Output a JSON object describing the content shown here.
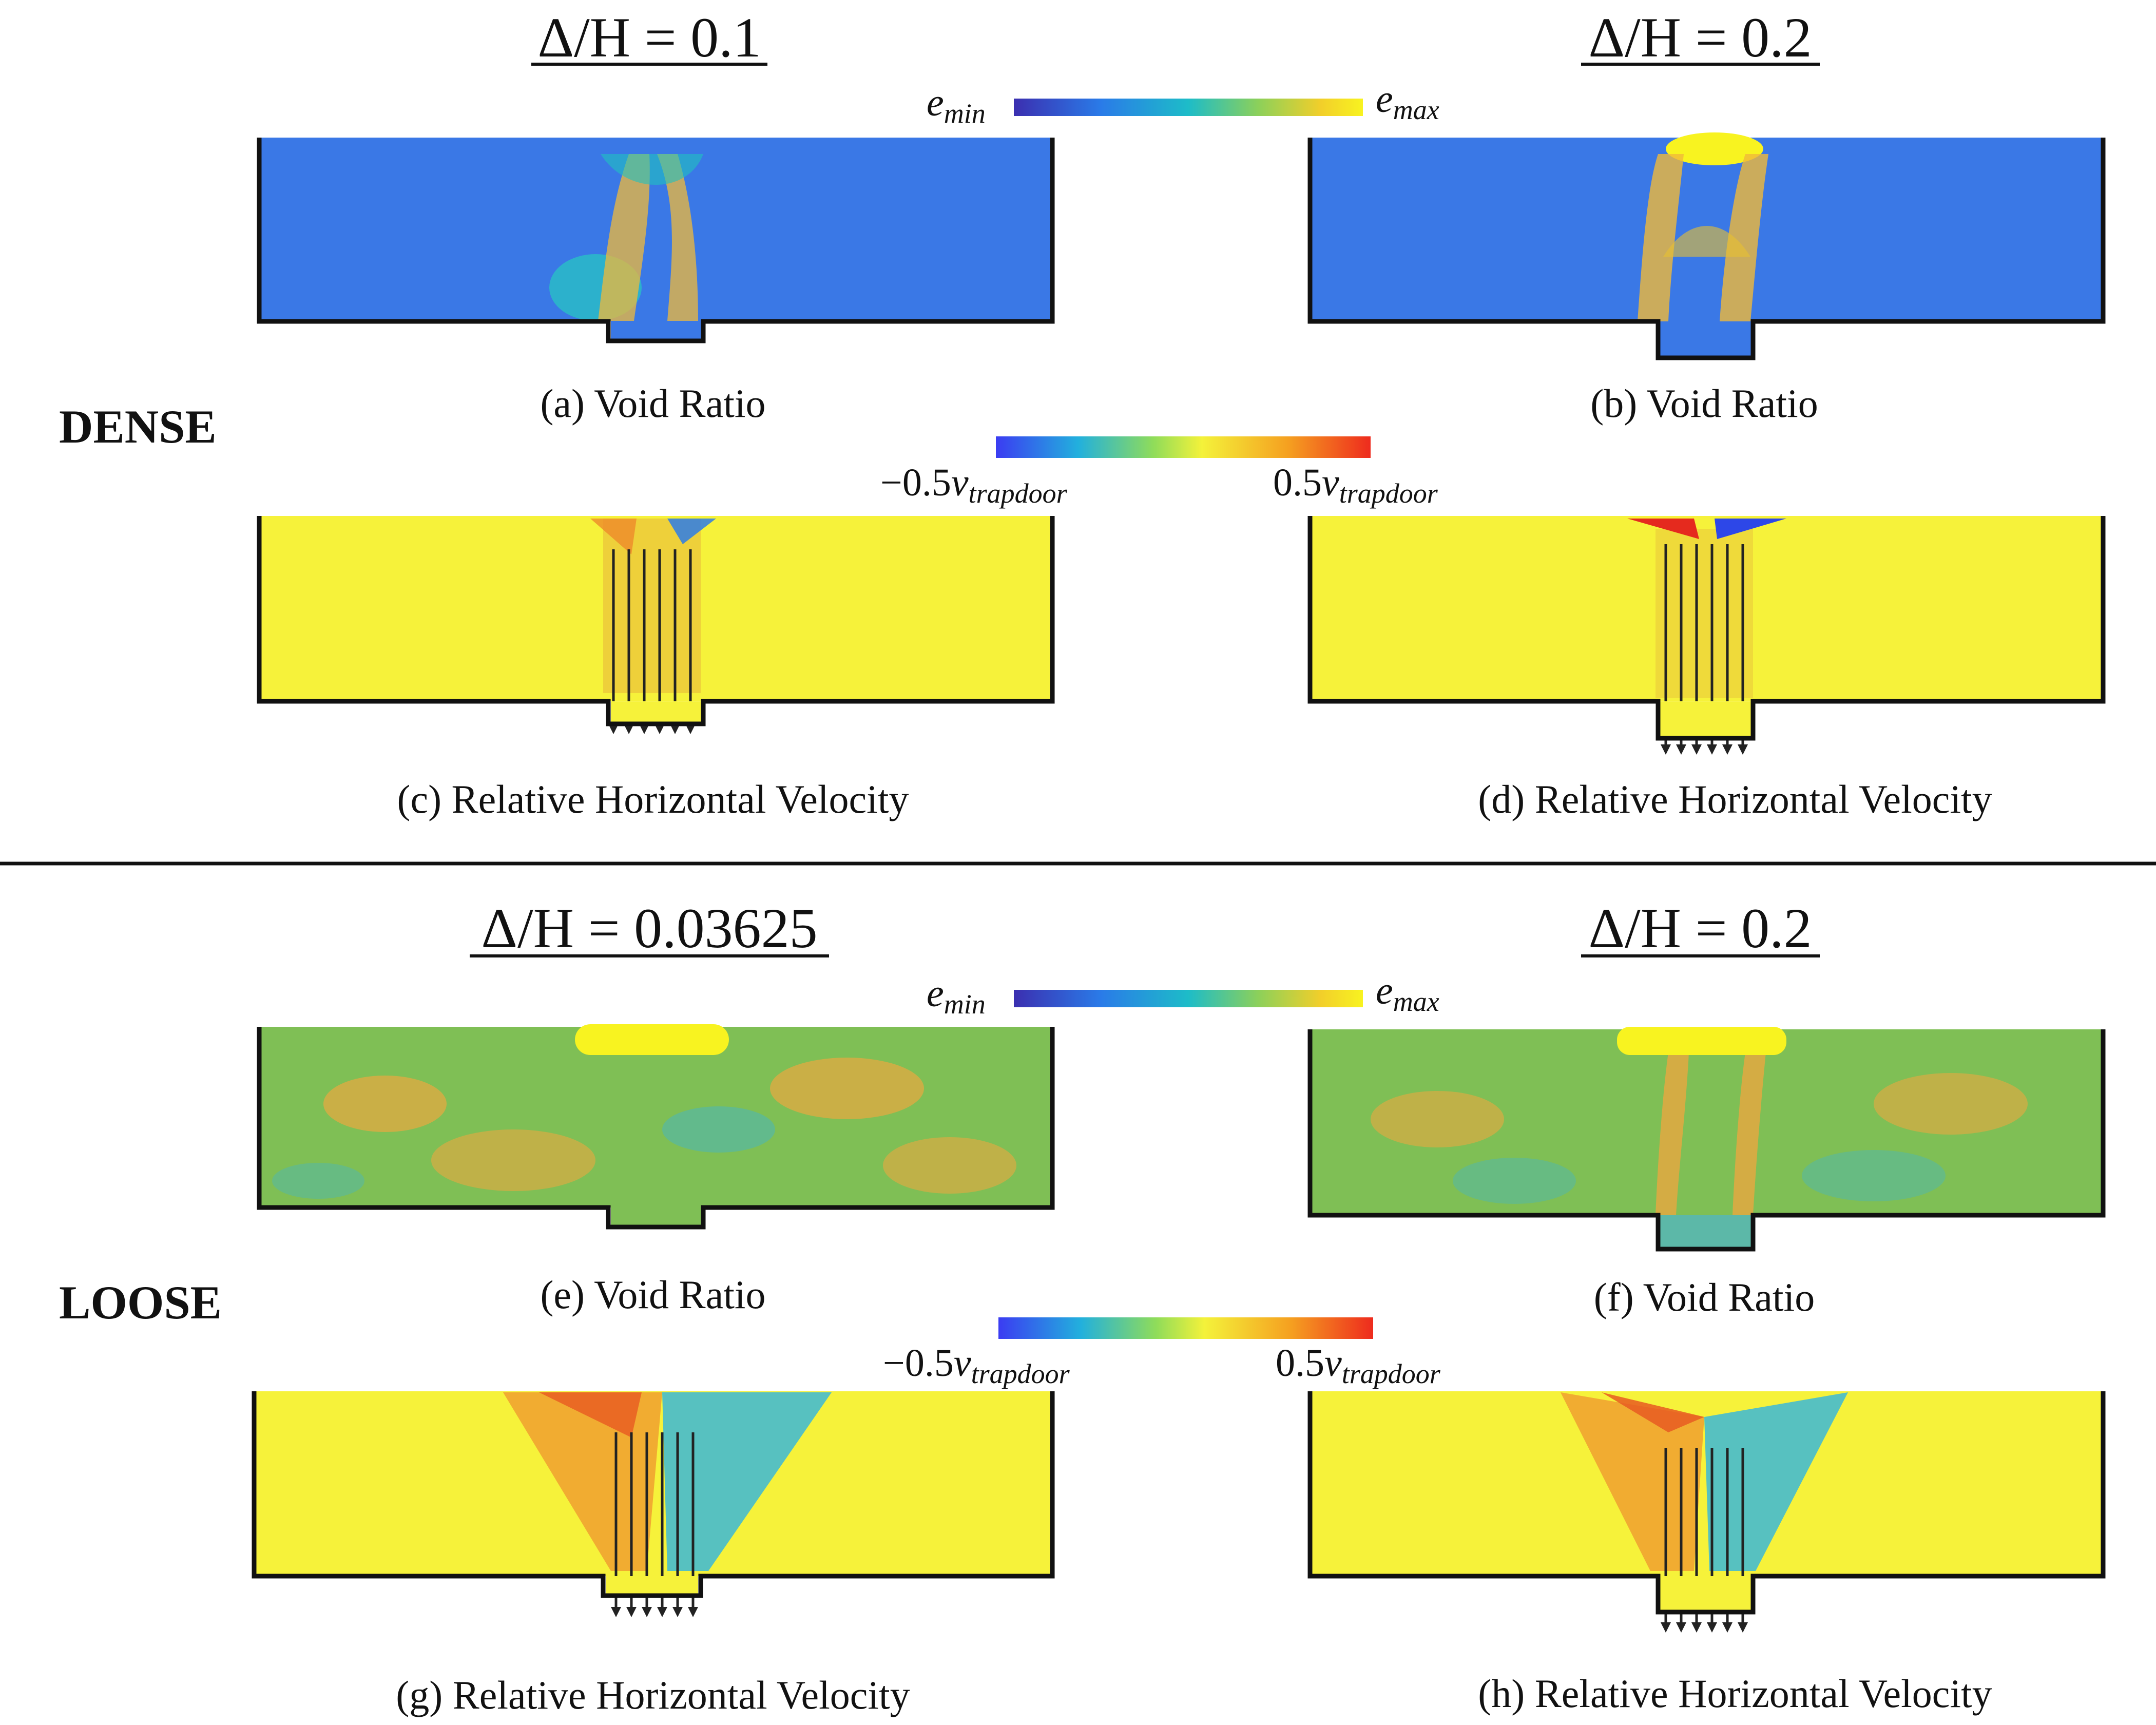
{
  "dense": {
    "group_label": "DENSE",
    "left_title": "Δ/H = 0.1",
    "right_title": "Δ/H = 0.2",
    "void_colorbar": {
      "min_base": "e",
      "min_sub": "min",
      "max_base": "e",
      "max_sub": "max"
    },
    "velocity_colorbar": {
      "min_num": "−0.5",
      "min_base": "v",
      "min_sub": "trapdoor",
      "max_num": "0.5",
      "max_base": "v",
      "max_sub": "trapdoor"
    },
    "captions": {
      "a": "(a) Void Ratio",
      "b": "(b) Void Ratio",
      "c": "(c) Relative Horizontal Velocity",
      "d": "(d) Relative Horizontal Velocity"
    }
  },
  "loose": {
    "group_label": "LOOSE",
    "left_title": "Δ/H = 0.03625",
    "right_title": "Δ/H = 0.2",
    "void_colorbar": {
      "min_base": "e",
      "min_sub": "min",
      "max_base": "e",
      "max_sub": "max"
    },
    "velocity_colorbar": {
      "min_num": "−0.5",
      "min_base": "v",
      "min_sub": "trapdoor",
      "max_num": "0.5",
      "max_base": "v",
      "max_sub": "trapdoor"
    },
    "captions": {
      "e": "(e) Void Ratio",
      "f": "(f) Void Ratio",
      "g": "(g) Relative Horizontal Velocity",
      "h": "(h) Relative Horizontal Velocity"
    }
  },
  "colors": {
    "void_dense_fill": "#3a78e6",
    "void_loose_fill": "#7fbf55",
    "velocity_fill": "#f6f23a",
    "void_colormap": [
      "#3b2fb0",
      "#2a7be8",
      "#1dbcc8",
      "#8cd05a",
      "#f2cf2a",
      "#f8f320"
    ],
    "velocity_colormap": [
      "#3b3cf2",
      "#22b0dd",
      "#8fdc5a",
      "#f4f23a",
      "#f5a020",
      "#ee2b1e"
    ]
  }
}
